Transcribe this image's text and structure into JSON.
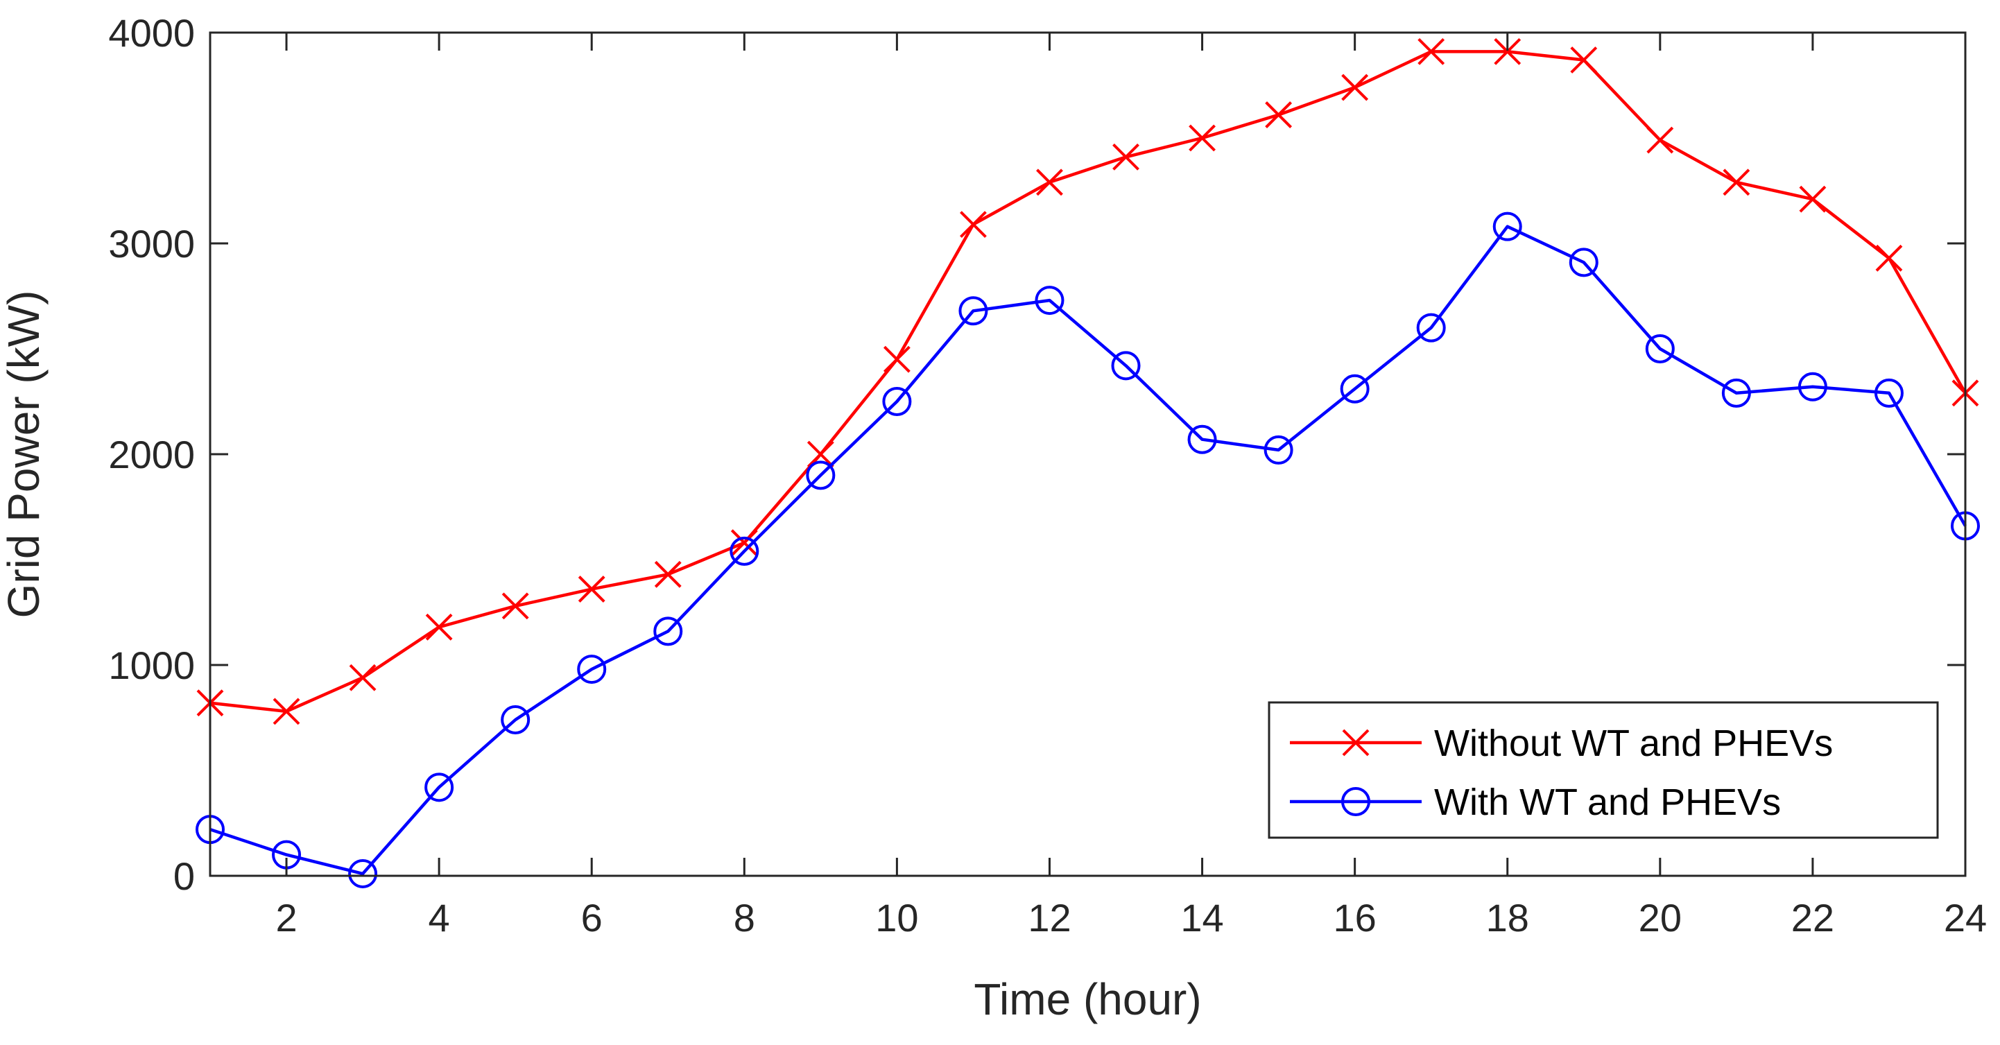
{
  "chart_data": {
    "type": "line",
    "title": "",
    "xlabel": "Time (hour)",
    "ylabel": "Grid Power (kW)",
    "xlim": [
      1,
      24
    ],
    "ylim": [
      0,
      4000
    ],
    "xticks": [
      2,
      4,
      6,
      8,
      10,
      12,
      14,
      16,
      18,
      20,
      22,
      24
    ],
    "yticks": [
      0,
      1000,
      2000,
      3000,
      4000
    ],
    "grid": false,
    "legend_position": "bottom-right",
    "x": [
      1,
      2,
      3,
      4,
      5,
      6,
      7,
      8,
      9,
      10,
      11,
      12,
      13,
      14,
      15,
      16,
      17,
      18,
      19,
      20,
      21,
      22,
      23,
      24
    ],
    "series": [
      {
        "name": "Without WT and PHEVs",
        "color": "#ff0000",
        "marker": "x",
        "values": [
          820,
          780,
          940,
          1180,
          1280,
          1360,
          1430,
          1580,
          2000,
          2450,
          3090,
          3290,
          3410,
          3500,
          3610,
          3740,
          3910,
          3910,
          3870,
          3490,
          3290,
          3210,
          2930,
          2290
        ]
      },
      {
        "name": "With WT and PHEVs",
        "color": "#0000ff",
        "marker": "o",
        "values": [
          220,
          100,
          10,
          420,
          740,
          980,
          1160,
          1540,
          1900,
          2250,
          2680,
          2730,
          2420,
          2070,
          2020,
          2310,
          2600,
          3080,
          2910,
          2500,
          2290,
          2320,
          2290,
          1660
        ]
      }
    ]
  }
}
